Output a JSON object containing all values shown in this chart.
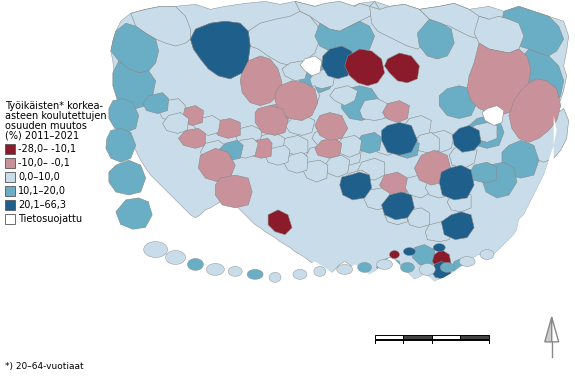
{
  "legend_title_lines": [
    "Työikäisten* korkea-",
    "asteen koulutettujen",
    "osuuden muutos",
    "(%) 2011–2021"
  ],
  "legend_items": [
    {
      "label": "-28,0– -10,1",
      "color": "#8B1A2A"
    },
    {
      "label": "-10,0– -0,1",
      "color": "#C9929B"
    },
    {
      "label": "0,0–10,0",
      "color": "#C8DDE9"
    },
    {
      "label": "10,1–20,0",
      "color": "#6AAEC6"
    },
    {
      "label": "20,1–66,3",
      "color": "#1F5F8B"
    },
    {
      "label": "Tietosuojattu",
      "color": "#FFFFFF"
    }
  ],
  "footnote": "*) 20–64-vuotiaat",
  "background_color": "#FFFFFF",
  "colors": {
    "dark_red": "#8B1A2A",
    "light_pink": "#C9929B",
    "light_blue": "#C8DDE9",
    "medium_blue": "#6AAEC6",
    "dark_blue": "#1F5F8B",
    "white": "#FFFFFF"
  },
  "figsize": [
    5.75,
    3.78
  ],
  "dpi": 100
}
